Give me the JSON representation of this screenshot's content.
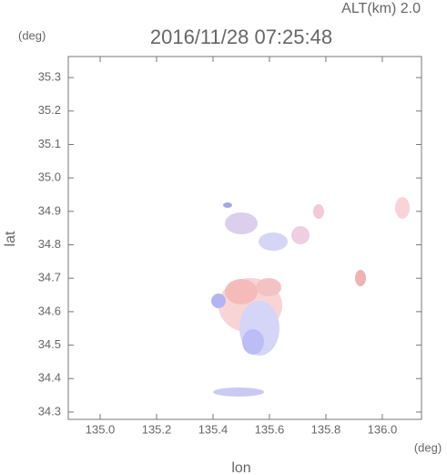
{
  "chart_data": {
    "type": "heatmap",
    "title": "2016/11/28 07:25:48",
    "subtitle": "ALT(km) 2.0",
    "y_unit": "(deg)",
    "x_unit": "(deg)",
    "xlabel": "lon",
    "ylabel": "lat",
    "xlim": [
      134.887,
      136.139
    ],
    "ylim": [
      34.278,
      35.363
    ],
    "xticks": [
      {
        "value": 135,
        "label": "135.0"
      },
      135.2,
      135.4,
      135.6,
      135.8,
      {
        "value": 136,
        "label": "136.0"
      }
    ],
    "yticks": [
      34.3,
      34.4,
      34.5,
      34.6,
      34.7,
      34.8,
      34.9,
      {
        "value": 35,
        "label": "35.0"
      },
      35.1,
      35.2,
      35.3
    ]
  }
}
